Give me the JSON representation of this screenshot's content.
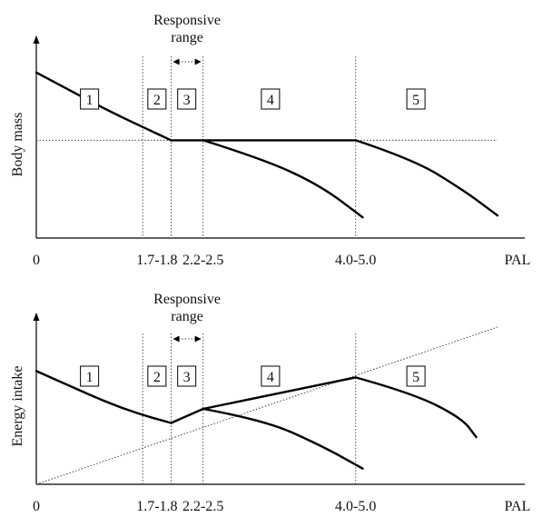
{
  "chart_data": [
    {
      "type": "line",
      "ylabel": "Body mass",
      "xlabel": "PAL",
      "x_tick_labels": [
        "0",
        "1.7-1.8",
        "2.2-2.5",
        "4.0-5.0"
      ],
      "zones": [
        "1",
        "2",
        "3",
        "4",
        "5"
      ],
      "responsive_range": [
        "Responsive",
        "range"
      ],
      "series": [
        {
          "x": [
            0,
            0.5,
            1.0,
            1.5,
            1.9
          ],
          "y": [
            0.88,
            0.78,
            0.68,
            0.59,
            0.52
          ]
        },
        {
          "x": [
            1.9,
            2.35,
            4.5
          ],
          "y": [
            0.52,
            0.52,
            0.52
          ]
        },
        {
          "x": [
            2.35,
            3.2,
            4.0,
            4.6
          ],
          "y": [
            0.52,
            0.42,
            0.28,
            0.11
          ]
        },
        {
          "x": [
            4.5,
            5.3,
            6.0,
            6.5
          ],
          "y": [
            0.52,
            0.42,
            0.26,
            0.12
          ]
        }
      ],
      "reference_line": {
        "style": "dotted",
        "x": [
          0,
          6.5
        ],
        "y": [
          0.52,
          0.52
        ]
      },
      "vertical_lines_at": [
        1.5,
        1.9,
        2.35,
        4.5
      ]
    },
    {
      "type": "line",
      "ylabel": "Energy intake",
      "xlabel": "PAL",
      "x_tick_labels": [
        "0",
        "1.7-1.8",
        "2.2-2.5",
        "4.0-5.0"
      ],
      "zones": [
        "1",
        "2",
        "3",
        "4",
        "5"
      ],
      "responsive_range": [
        "Responsive",
        "range"
      ],
      "series": [
        {
          "x": [
            0,
            0.5,
            1.0,
            1.5,
            1.9
          ],
          "y": [
            0.72,
            0.62,
            0.52,
            0.44,
            0.39
          ]
        },
        {
          "x": [
            1.9,
            2.35,
            4.5
          ],
          "y": [
            0.39,
            0.48,
            0.68
          ]
        },
        {
          "x": [
            2.35,
            3.2,
            4.0,
            4.6
          ],
          "y": [
            0.48,
            0.41,
            0.25,
            0.1
          ]
        },
        {
          "x": [
            4.5,
            5.3,
            6.0,
            6.2
          ],
          "y": [
            0.68,
            0.58,
            0.42,
            0.3
          ]
        }
      ],
      "reference_line": {
        "style": "dotted",
        "x": [
          0,
          6.5
        ],
        "y": [
          0.0,
          1.0
        ]
      },
      "vertical_lines_at": [
        1.5,
        1.9,
        2.35,
        4.5
      ]
    }
  ]
}
